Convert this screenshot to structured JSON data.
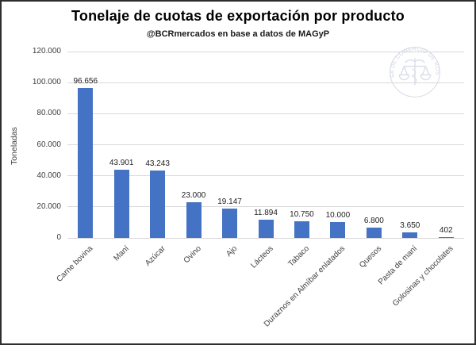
{
  "page": {
    "background": "#FFFFFF",
    "border_color": "#2E2E2E"
  },
  "chart_data": {
    "type": "bar",
    "title": "Tonelaje de cuotas de exportación por producto",
    "subtitle": "@BCRmercados en base a datos de MAGyP",
    "ylabel": "Toneladas",
    "xlabel": "",
    "categories": [
      "Carne bovina",
      "Maní",
      "Azúcar",
      "Ovino",
      "Ajo",
      "Lácteos",
      "Tabaco",
      "Duraznos en Almíbar enlatados",
      "Quesos",
      "Pasta de maní",
      "Golosinas y chocolates"
    ],
    "values": [
      96656,
      43901,
      43243,
      23000,
      19147,
      11894,
      10750,
      10000,
      6800,
      3650,
      402
    ],
    "value_labels": [
      "96.656",
      "43.901",
      "43.243",
      "23.000",
      "19.147",
      "11.894",
      "10.750",
      "10.000",
      "6.800",
      "3.650",
      "402"
    ],
    "y_tick_values": [
      0,
      20000,
      40000,
      60000,
      80000,
      100000,
      120000
    ],
    "y_tick_labels": [
      "0",
      "20.000",
      "40.000",
      "60.000",
      "80.000",
      "100.000",
      "120.000"
    ],
    "ylim": [
      0,
      120000
    ],
    "grid": true,
    "legend": "none",
    "bar_color": "#4472C4",
    "gridline_color": "#D9D9D9",
    "axis_text_color": "#3F3F3F",
    "watermark_text": "BOLSA DE COMERCIO DE ROSARIO",
    "watermark_color": "#D7D9E6"
  }
}
